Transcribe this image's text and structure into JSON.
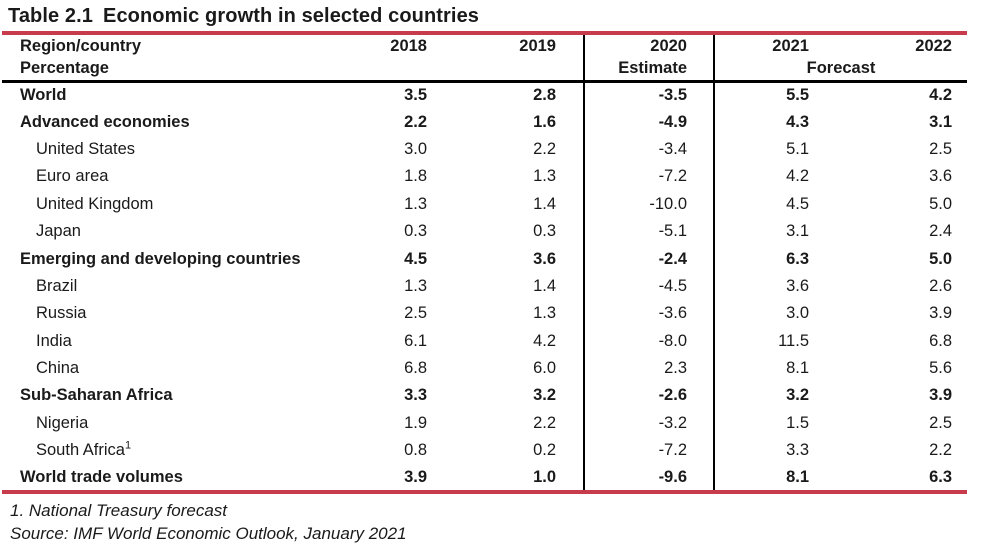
{
  "title": {
    "label": "Table 2.1",
    "text": "Economic growth in selected countries"
  },
  "table": {
    "header": {
      "region_label": "Region/country",
      "unit_label": "Percentage",
      "years": [
        "2018",
        "2019",
        "2020",
        "2021",
        "2022"
      ],
      "estimate_label": "Estimate",
      "forecast_label": "Forecast"
    },
    "rows": [
      {
        "label": "World",
        "bold": true,
        "indent": false,
        "values": [
          "3.5",
          "2.8",
          "-3.5",
          "5.5",
          "4.2"
        ]
      },
      {
        "label": "Advanced economies",
        "bold": true,
        "indent": false,
        "values": [
          "2.2",
          "1.6",
          "-4.9",
          "4.3",
          "3.1"
        ]
      },
      {
        "label": "United States",
        "bold": false,
        "indent": true,
        "values": [
          "3.0",
          "2.2",
          "-3.4",
          "5.1",
          "2.5"
        ]
      },
      {
        "label": "Euro area",
        "bold": false,
        "indent": true,
        "values": [
          "1.8",
          "1.3",
          "-7.2",
          "4.2",
          "3.6"
        ]
      },
      {
        "label": "United Kingdom",
        "bold": false,
        "indent": true,
        "values": [
          "1.3",
          "1.4",
          "-10.0",
          "4.5",
          "5.0"
        ]
      },
      {
        "label": "Japan",
        "bold": false,
        "indent": true,
        "values": [
          "0.3",
          "0.3",
          "-5.1",
          "3.1",
          "2.4"
        ]
      },
      {
        "label": "Emerging and developing countries",
        "bold": true,
        "indent": false,
        "values": [
          "4.5",
          "3.6",
          "-2.4",
          "6.3",
          "5.0"
        ]
      },
      {
        "label": "Brazil",
        "bold": false,
        "indent": true,
        "values": [
          "1.3",
          "1.4",
          "-4.5",
          "3.6",
          "2.6"
        ]
      },
      {
        "label": "Russia",
        "bold": false,
        "indent": true,
        "values": [
          "2.5",
          "1.3",
          "-3.6",
          "3.0",
          "3.9"
        ]
      },
      {
        "label": "India",
        "bold": false,
        "indent": true,
        "values": [
          "6.1",
          "4.2",
          "-8.0",
          "11.5",
          "6.8"
        ]
      },
      {
        "label": "China",
        "bold": false,
        "indent": true,
        "values": [
          "6.8",
          "6.0",
          "2.3",
          "8.1",
          "5.6"
        ]
      },
      {
        "label": "Sub-Saharan Africa",
        "bold": true,
        "indent": false,
        "values": [
          "3.3",
          "3.2",
          "-2.6",
          "3.2",
          "3.9"
        ]
      },
      {
        "label": "Nigeria",
        "bold": false,
        "indent": true,
        "values": [
          "1.9",
          "2.2",
          "-3.2",
          "1.5",
          "2.5"
        ]
      },
      {
        "label": "South Africa",
        "sup": "1",
        "bold": false,
        "indent": true,
        "values": [
          "0.8",
          "0.2",
          "-7.2",
          "3.3",
          "2.2"
        ]
      },
      {
        "label": "World trade volumes",
        "bold": true,
        "indent": false,
        "values": [
          "3.9",
          "1.0",
          "-9.6",
          "8.1",
          "6.3"
        ]
      }
    ]
  },
  "footnotes": [
    "1. National Treasury forecast",
    "Source: IMF World Economic Outlook, January 2021"
  ],
  "colors": {
    "accent_red": "#C83B4D",
    "rule_black": "#000000",
    "text": "#1A1A1A"
  }
}
